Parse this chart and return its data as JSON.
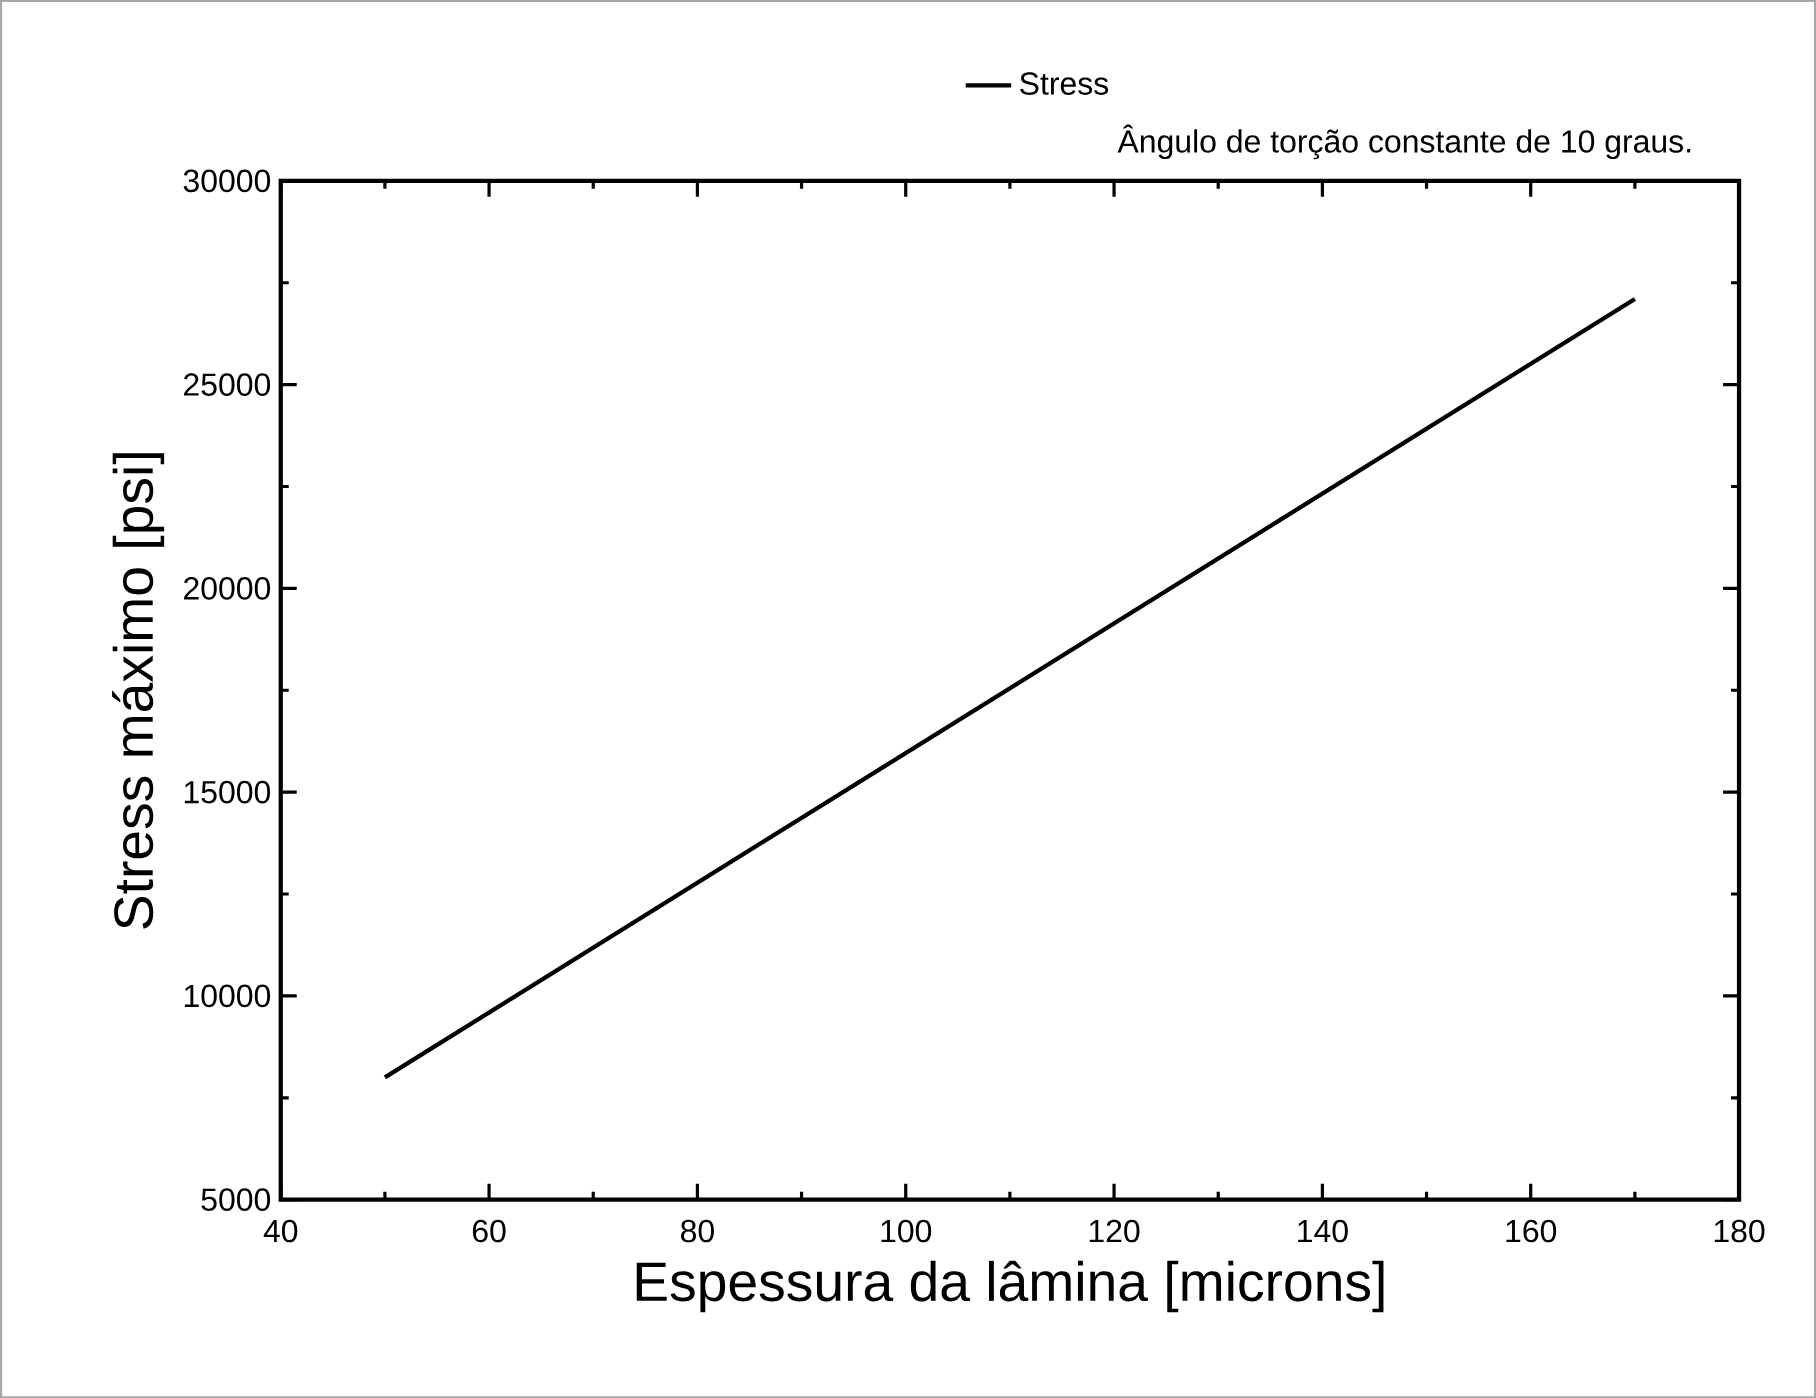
{
  "chart_data": {
    "type": "line",
    "xlabel": "Espessura da lâmina [microns]",
    "ylabel": "Stress máximo [psi]",
    "annotations": [
      "Ângulo de torção constante de 10 graus."
    ],
    "x": [
      50,
      170
    ],
    "series": [
      {
        "name": "Stress",
        "color": "#000000",
        "values": [
          8000,
          27100
        ]
      }
    ],
    "xlim": [
      40,
      180
    ],
    "xticks": [
      40,
      60,
      80,
      100,
      120,
      140,
      160,
      180
    ],
    "ylim": [
      5000,
      30000
    ],
    "yticks": [
      5000,
      10000,
      15000,
      20000,
      25000,
      30000
    ],
    "grid": false,
    "legend": "top",
    "marker": "none",
    "line_style": "solid"
  }
}
